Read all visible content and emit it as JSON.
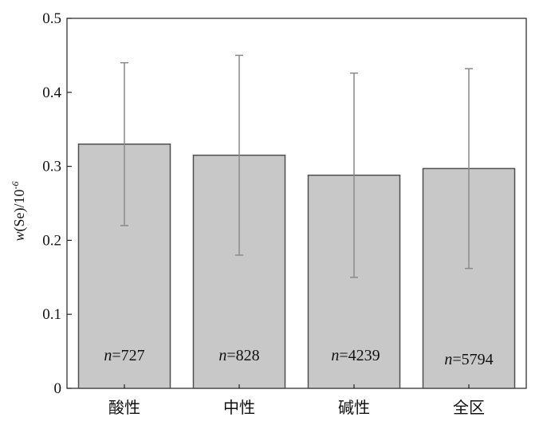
{
  "chart_data": {
    "type": "bar",
    "categories": [
      "酸性",
      "中性",
      "碱性",
      "全区"
    ],
    "values": [
      0.33,
      0.315,
      0.288,
      0.297
    ],
    "error_low": [
      0.22,
      0.18,
      0.15,
      0.162
    ],
    "error_high": [
      0.44,
      0.45,
      0.426,
      0.432
    ],
    "annotations": [
      {
        "prefix": "n",
        "text": "=727"
      },
      {
        "prefix": "n",
        "text": "=828"
      },
      {
        "prefix": "n",
        "text": "=4239"
      },
      {
        "prefix": "n",
        "text": "=5794"
      }
    ],
    "ylabel": {
      "var": "w",
      "rest": "(Se)/10",
      "sup": "-6"
    },
    "ylim": [
      0,
      0.5
    ],
    "yticks": [
      "0",
      "0.1",
      "0.2",
      "0.3",
      "0.4",
      "0.5"
    ],
    "grid": false,
    "colors": {
      "bar_fill": "#c8c8c8",
      "bar_stroke": "#505050",
      "error_bar": "#8a8a8a",
      "axis": "#222222"
    }
  }
}
